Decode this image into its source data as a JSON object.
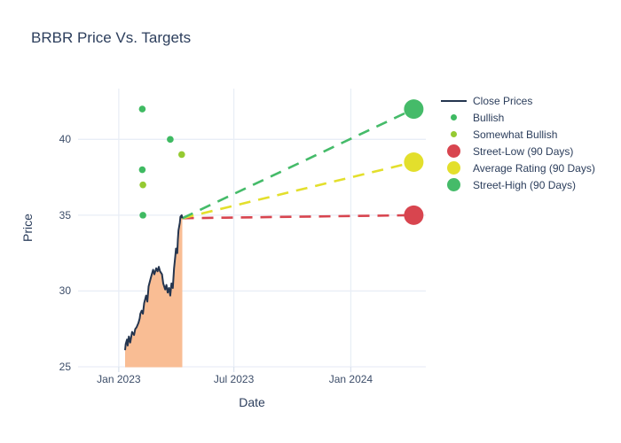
{
  "title": "BRBR Price Vs. Targets",
  "axes": {
    "x_label": "Date",
    "y_label": "Price",
    "x_tick_labels": [
      "Jan 2023",
      "Jul 2023",
      "Jan 2024"
    ],
    "y_tick_labels": [
      "25",
      "30",
      "35",
      "40"
    ]
  },
  "colors": {
    "close_line": "#24354f",
    "close_fill": "#f9bd94",
    "bullish": "#3fba62",
    "somewhat_bullish": "#95ca32",
    "street_low": "#d8454f",
    "average_rating": "#e3df2c",
    "street_high": "#45bb69",
    "gridline": "#e9eef6",
    "tick_mark": "#dbe3ee",
    "tick_text": "#3c4d69",
    "title_text": "#2c3e5c"
  },
  "legend": {
    "items": [
      {
        "label": "Close Prices",
        "type": "line",
        "color": "#24354f"
      },
      {
        "label": "Bullish",
        "type": "dot-sm",
        "color": "#3fba62"
      },
      {
        "label": "Somewhat Bullish",
        "type": "dot-sm",
        "color": "#95ca32"
      },
      {
        "label": "Street-Low (90 Days)",
        "type": "dot-lg",
        "color": "#d8454f"
      },
      {
        "label": "Average Rating (90 Days)",
        "type": "dot-lg",
        "color": "#e3df2c"
      },
      {
        "label": "Street-High (90 Days)",
        "type": "dot-lg",
        "color": "#45bb69"
      }
    ]
  },
  "chart_data": {
    "type": "line",
    "title": "BRBR Price Vs. Targets",
    "xlabel": "Date",
    "ylabel": "Price",
    "grid": true,
    "legend_position": "right",
    "x_range": [
      "2022-10-29",
      "2024-04-28"
    ],
    "y_range": [
      25,
      43.35
    ],
    "x_ticks": [
      {
        "date": "2023-01-01",
        "label": "Jan 2023"
      },
      {
        "date": "2023-07-01",
        "label": "Jul 2023"
      },
      {
        "date": "2024-01-01",
        "label": "Jan 2024"
      }
    ],
    "y_ticks": [
      25,
      30,
      35,
      40
    ],
    "series": {
      "close_prices": {
        "name": "Close Prices",
        "fill": "tozeroy",
        "dates": [
          "2023-01-11",
          "2023-01-12",
          "2023-01-14",
          "2023-01-15",
          "2023-01-17",
          "2023-01-19",
          "2023-01-22",
          "2023-01-25",
          "2023-01-27",
          "2023-01-29",
          "2023-02-01",
          "2023-02-03",
          "2023-02-04",
          "2023-02-06",
          "2023-02-08",
          "2023-02-10",
          "2023-02-13",
          "2023-02-15",
          "2023-02-17",
          "2023-02-20",
          "2023-02-22",
          "2023-02-24",
          "2023-02-26",
          "2023-03-01",
          "2023-03-03",
          "2023-03-05",
          "2023-03-07",
          "2023-03-10",
          "2023-03-12",
          "2023-03-15",
          "2023-03-17",
          "2023-03-19",
          "2023-03-21",
          "2023-03-23",
          "2023-03-25",
          "2023-03-27",
          "2023-03-29",
          "2023-03-31",
          "2023-04-01",
          "2023-04-03",
          "2023-04-04",
          "2023-04-05",
          "2023-04-07",
          "2023-04-08",
          "2023-04-10",
          "2023-04-11"
        ],
        "values": [
          26.1,
          26.5,
          26.8,
          26.4,
          27.0,
          26.6,
          27.3,
          27.1,
          27.5,
          27.6,
          27.9,
          28.2,
          28.5,
          28.7,
          28.5,
          29.2,
          29.7,
          29.3,
          30.3,
          30.8,
          31.1,
          31.4,
          31.1,
          31.5,
          31.3,
          31.6,
          31.3,
          31.1,
          30.5,
          30.1,
          30.4,
          29.9,
          30.2,
          29.7,
          30.5,
          30.2,
          31.5,
          32.3,
          32.8,
          32.5,
          33.4,
          34.0,
          34.5,
          34.9,
          35.0,
          34.8
        ]
      },
      "bullish": {
        "name": "Bullish",
        "points": [
          {
            "date": "2023-02-07",
            "value": 42
          },
          {
            "date": "2023-03-23",
            "value": 40
          },
          {
            "date": "2023-02-07",
            "value": 38
          },
          {
            "date": "2023-02-08",
            "value": 35
          }
        ]
      },
      "somewhat_bullish": {
        "name": "Somewhat Bullish",
        "points": [
          {
            "date": "2023-04-10",
            "value": 39
          },
          {
            "date": "2023-02-08",
            "value": 37
          }
        ]
      },
      "projection_start": {
        "date": "2023-04-11",
        "value": 34.8
      },
      "targets": {
        "date": "2024-04-09",
        "street_low": 35,
        "average_rating": 38.5,
        "street_high": 42
      }
    }
  }
}
